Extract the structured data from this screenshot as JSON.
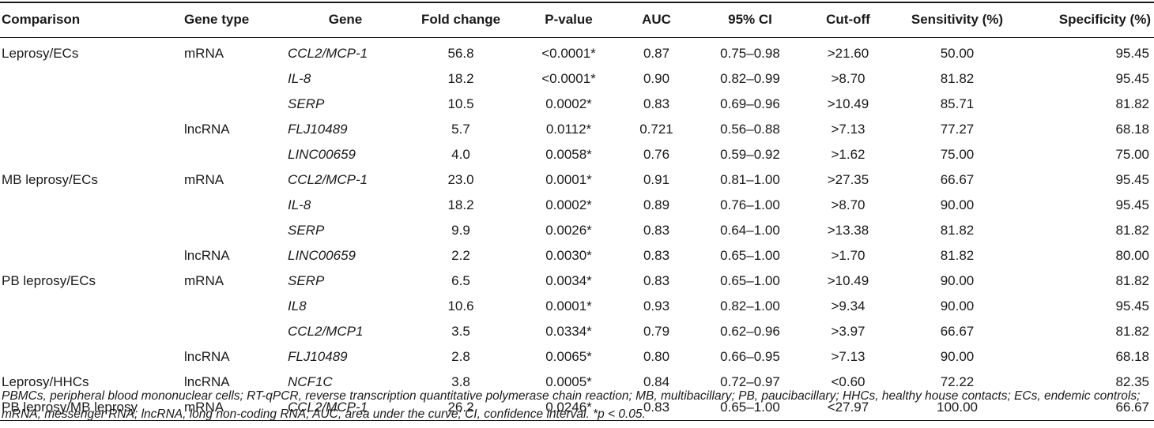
{
  "table": {
    "headers": {
      "comparison": "Comparison",
      "gene_type": "Gene type",
      "gene": "Gene",
      "fold_change": "Fold change",
      "p_value": "P-value",
      "auc": "AUC",
      "ci": "95% CI",
      "cutoff": "Cut-off",
      "sensitivity": "Sensitivity (%)",
      "specificity": "Specificity (%)"
    },
    "rows": [
      {
        "comparison": "Leprosy/ECs",
        "gene_type": "mRNA",
        "gene": "CCL2/MCP-1",
        "fold_change": "56.8",
        "p_value": "<0.0001*",
        "auc": "0.87",
        "ci": "0.75–0.98",
        "cutoff": ">21.60",
        "sensitivity": "50.00",
        "specificity": "95.45"
      },
      {
        "comparison": "",
        "gene_type": "",
        "gene": "IL-8",
        "fold_change": "18.2",
        "p_value": "<0.0001*",
        "auc": "0.90",
        "ci": "0.82–0.99",
        "cutoff": ">8.70",
        "sensitivity": "81.82",
        "specificity": "95.45"
      },
      {
        "comparison": "",
        "gene_type": "",
        "gene": "SERP",
        "fold_change": "10.5",
        "p_value": "0.0002*",
        "auc": "0.83",
        "ci": "0.69–0.96",
        "cutoff": ">10.49",
        "sensitivity": "85.71",
        "specificity": "81.82"
      },
      {
        "comparison": "",
        "gene_type": "lncRNA",
        "gene": "FLJ10489",
        "fold_change": "5.7",
        "p_value": "0.0112*",
        "auc": "0.721",
        "ci": "0.56–0.88",
        "cutoff": ">7.13",
        "sensitivity": "77.27",
        "specificity": "68.18"
      },
      {
        "comparison": "",
        "gene_type": "",
        "gene": "LINC00659",
        "fold_change": "4.0",
        "p_value": "0.0058*",
        "auc": "0.76",
        "ci": "0.59–0.92",
        "cutoff": ">1.62",
        "sensitivity": "75.00",
        "specificity": "75.00"
      },
      {
        "comparison": "MB leprosy/ECs",
        "gene_type": "mRNA",
        "gene": "CCL2/MCP-1",
        "fold_change": "23.0",
        "p_value": "0.0001*",
        "auc": "0.91",
        "ci": "0.81–1.00",
        "cutoff": ">27.35",
        "sensitivity": "66.67",
        "specificity": "95.45"
      },
      {
        "comparison": "",
        "gene_type": "",
        "gene": "IL-8",
        "fold_change": "18.2",
        "p_value": "0.0002*",
        "auc": "0.89",
        "ci": "0.76–1.00",
        "cutoff": ">8.70",
        "sensitivity": "90.00",
        "specificity": "95.45"
      },
      {
        "comparison": "",
        "gene_type": "",
        "gene": "SERP",
        "fold_change": "9.9",
        "p_value": "0.0026*",
        "auc": "0.83",
        "ci": "0.64–1.00",
        "cutoff": ">13.38",
        "sensitivity": "81.82",
        "specificity": "81.82"
      },
      {
        "comparison": "",
        "gene_type": "lncRNA",
        "gene": "LINC00659",
        "fold_change": "2.2",
        "p_value": "0.0030*",
        "auc": "0.83",
        "ci": "0.65–1.00",
        "cutoff": ">1.70",
        "sensitivity": "81.82",
        "specificity": "80.00"
      },
      {
        "comparison": "PB leprosy/ECs",
        "gene_type": "mRNA",
        "gene": "SERP",
        "fold_change": "6.5",
        "p_value": "0.0034*",
        "auc": "0.83",
        "ci": "0.65–1.00",
        "cutoff": ">10.49",
        "sensitivity": "90.00",
        "specificity": "81.82"
      },
      {
        "comparison": "",
        "gene_type": "",
        "gene": "IL8",
        "fold_change": "10.6",
        "p_value": "0.0001*",
        "auc": "0.93",
        "ci": "0.82–1.00",
        "cutoff": ">9.34",
        "sensitivity": "90.00",
        "specificity": "95.45"
      },
      {
        "comparison": "",
        "gene_type": "",
        "gene": "CCL2/MCP1",
        "fold_change": "3.5",
        "p_value": "0.0334*",
        "auc": "0.79",
        "ci": "0.62–0.96",
        "cutoff": ">3.97",
        "sensitivity": "66.67",
        "specificity": "81.82"
      },
      {
        "comparison": "",
        "gene_type": "lncRNA",
        "gene": "FLJ10489",
        "fold_change": "2.8",
        "p_value": "0.0065*",
        "auc": "0.80",
        "ci": "0.66–0.95",
        "cutoff": ">7.13",
        "sensitivity": "90.00",
        "specificity": "68.18"
      },
      {
        "comparison": "Leprosy/HHCs",
        "gene_type": "lncRNA",
        "gene": "NCF1C",
        "fold_change": "3.8",
        "p_value": "0.0005*",
        "auc": "0.84",
        "ci": "0.72–0.97",
        "cutoff": "<0.60",
        "sensitivity": "72.22",
        "specificity": "82.35"
      },
      {
        "comparison": "PB leprosy/MB leprosy",
        "gene_type": "mRNA",
        "gene": "CCL2/MCP-1",
        "fold_change": "26.2",
        "p_value": "0.0246*",
        "auc": "0.83",
        "ci": "0.65–1.00",
        "cutoff": "<27.97",
        "sensitivity": "100.00",
        "specificity": "66.67"
      }
    ]
  },
  "footnote": "PBMCs, peripheral blood mononuclear cells; RT-qPCR, reverse transcription quantitative polymerase chain reaction; MB, multibacillary; PB, paucibacillary; HHCs, healthy house contacts; ECs, endemic controls; mRNA, messenger RNA; lncRNA, long non-coding RNA; AUC, area under the curve; CI, confidence interval. *p < 0.05."
}
